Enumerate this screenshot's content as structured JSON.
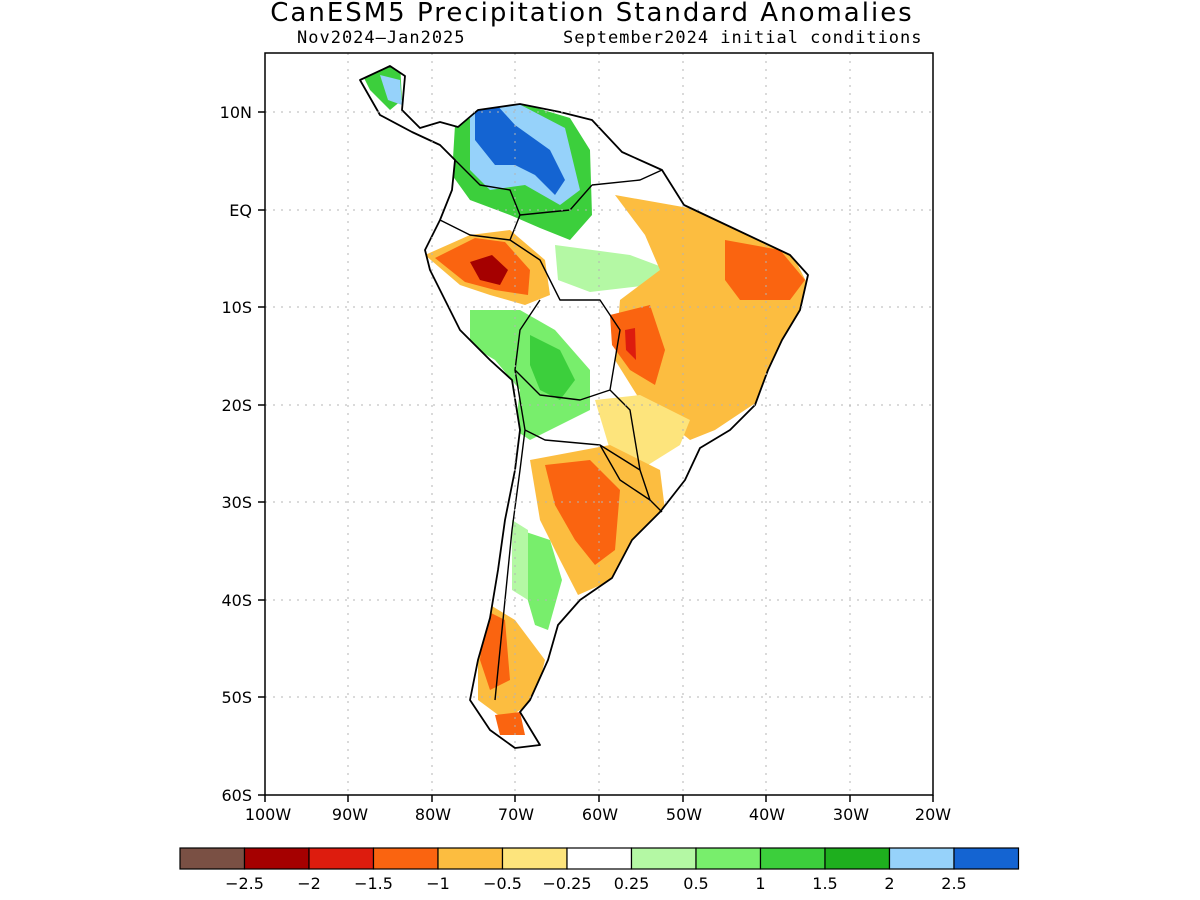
{
  "title": "CanESM5 Precipitation Standard Anomalies",
  "subtitle_period": "Nov2024—Jan2025",
  "subtitle_init": "September2024 initial conditions",
  "axes": {
    "lat_labels": [
      "10N",
      "EQ",
      "10S",
      "20S",
      "30S",
      "40S",
      "50S",
      "60S"
    ],
    "lon_labels": [
      "100W",
      "90W",
      "80W",
      "70W",
      "60W",
      "50W",
      "40W",
      "30W",
      "20W"
    ],
    "lat_range": [
      -60,
      15.5
    ],
    "lon_range": [
      -100,
      -20
    ],
    "grid": "dotted"
  },
  "colorbar": {
    "colors": [
      "#7a5044",
      "#a50000",
      "#dd1c0e",
      "#fa6410",
      "#fcbd40",
      "#fde47c",
      "#ffffff",
      "#b4f8a4",
      "#78ee6c",
      "#3ccf3c",
      "#1eaf1e",
      "#96d2fa",
      "#1464d2"
    ],
    "labels": [
      "−2.5",
      "−2",
      "−1.5",
      "−1",
      "−0.5",
      "−0.25",
      "0.25",
      "0.5",
      "1",
      "1.5",
      "2",
      "2.5"
    ]
  },
  "anomaly_regions": [
    {
      "name": "caribbean-coast-wet",
      "level": 4,
      "lon": -69,
      "lat": 8
    },
    {
      "name": "venezuela-core-wet",
      "level": 5,
      "lon": -70.5,
      "lat": 8.5
    },
    {
      "name": "amazon-west-dry",
      "level": -4,
      "lon": -74,
      "lat": -5
    },
    {
      "name": "northeast-brazil-dry",
      "level": -3,
      "lon": -40,
      "lat": -6
    },
    {
      "name": "central-brazil-dry",
      "level": -4,
      "lon": -56,
      "lat": -14
    },
    {
      "name": "bolivia-wet",
      "level": 3,
      "lon": -66,
      "lat": -16
    },
    {
      "name": "argentina-dry",
      "level": -3,
      "lon": -61,
      "lat": -30
    },
    {
      "name": "patagonia-wet",
      "level": 2,
      "lon": -67,
      "lat": -39
    },
    {
      "name": "southern-chile-dry",
      "level": -3,
      "lon": -72,
      "lat": -46
    }
  ]
}
